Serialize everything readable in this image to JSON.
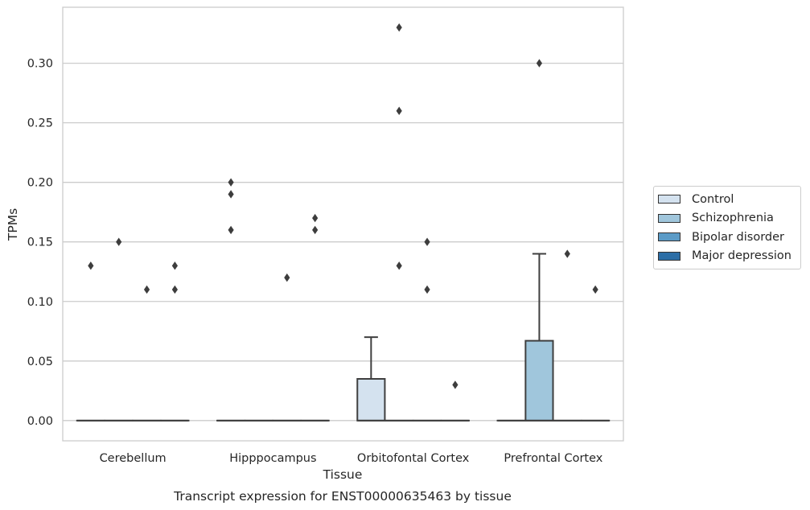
{
  "chart_data": {
    "type": "box",
    "title": "",
    "caption": "Transcript expression for ENST00000635463 by tissue",
    "xlabel": "Tissue",
    "ylabel": "TPMs",
    "ylim": [
      -0.017,
      0.347
    ],
    "yticks": [
      0.0,
      0.05,
      0.1,
      0.15,
      0.2,
      0.25,
      0.3
    ],
    "ytick_labels": [
      "0.00",
      "0.05",
      "0.10",
      "0.15",
      "0.20",
      "0.25",
      "0.30"
    ],
    "grid": "horizontal",
    "legend_position": "right",
    "categories": [
      "Cerebellum",
      "Hipppocampus",
      "Orbitofontal Cortex",
      "Prefrontal Cortex"
    ],
    "series": [
      {
        "name": "Control",
        "color": "#d4e2ef",
        "boxes": [
          {
            "q1": 0,
            "median": 0,
            "q3": 0,
            "whisker_low": 0,
            "whisker_high": 0,
            "outliers": [
              0.13
            ]
          },
          {
            "q1": 0,
            "median": 0,
            "q3": 0,
            "whisker_low": 0,
            "whisker_high": 0,
            "outliers": [
              0.2,
              0.19,
              0.16
            ]
          },
          {
            "q1": 0,
            "median": 0,
            "q3": 0.035,
            "whisker_low": 0,
            "whisker_high": 0.07,
            "outliers": []
          },
          {
            "q1": 0,
            "median": 0,
            "q3": 0,
            "whisker_low": 0,
            "whisker_high": 0,
            "outliers": []
          }
        ]
      },
      {
        "name": "Schizophrenia",
        "color": "#a0c6dc",
        "boxes": [
          {
            "q1": 0,
            "median": 0,
            "q3": 0,
            "whisker_low": 0,
            "whisker_high": 0,
            "outliers": [
              0.15
            ]
          },
          {
            "q1": 0,
            "median": 0,
            "q3": 0,
            "whisker_low": 0,
            "whisker_high": 0,
            "outliers": []
          },
          {
            "q1": 0,
            "median": 0,
            "q3": 0,
            "whisker_low": 0,
            "whisker_high": 0,
            "outliers": [
              0.33,
              0.26,
              0.13
            ]
          },
          {
            "q1": 0,
            "median": 0,
            "q3": 0.067,
            "whisker_low": 0,
            "whisker_high": 0.14,
            "outliers": [
              0.3
            ]
          }
        ]
      },
      {
        "name": "Bipolar disorder",
        "color": "#5b9bc7",
        "boxes": [
          {
            "q1": 0,
            "median": 0,
            "q3": 0,
            "whisker_low": 0,
            "whisker_high": 0,
            "outliers": [
              0.11
            ]
          },
          {
            "q1": 0,
            "median": 0,
            "q3": 0,
            "whisker_low": 0,
            "whisker_high": 0,
            "outliers": [
              0.12
            ]
          },
          {
            "q1": 0,
            "median": 0,
            "q3": 0,
            "whisker_low": 0,
            "whisker_high": 0,
            "outliers": [
              0.15,
              0.11
            ]
          },
          {
            "q1": 0,
            "median": 0,
            "q3": 0,
            "whisker_low": 0,
            "whisker_high": 0,
            "outliers": [
              0.14
            ]
          }
        ]
      },
      {
        "name": "Major depression",
        "color": "#2c6ea6",
        "boxes": [
          {
            "q1": 0,
            "median": 0,
            "q3": 0,
            "whisker_low": 0,
            "whisker_high": 0,
            "outliers": [
              0.13,
              0.11
            ]
          },
          {
            "q1": 0,
            "median": 0,
            "q3": 0,
            "whisker_low": 0,
            "whisker_high": 0,
            "outliers": [
              0.17,
              0.16
            ]
          },
          {
            "q1": 0,
            "median": 0,
            "q3": 0,
            "whisker_low": 0,
            "whisker_high": 0,
            "outliers": [
              0.03
            ]
          },
          {
            "q1": 0,
            "median": 0,
            "q3": 0,
            "whisker_low": 0,
            "whisker_high": 0,
            "outliers": [
              0.11
            ]
          }
        ]
      }
    ]
  }
}
